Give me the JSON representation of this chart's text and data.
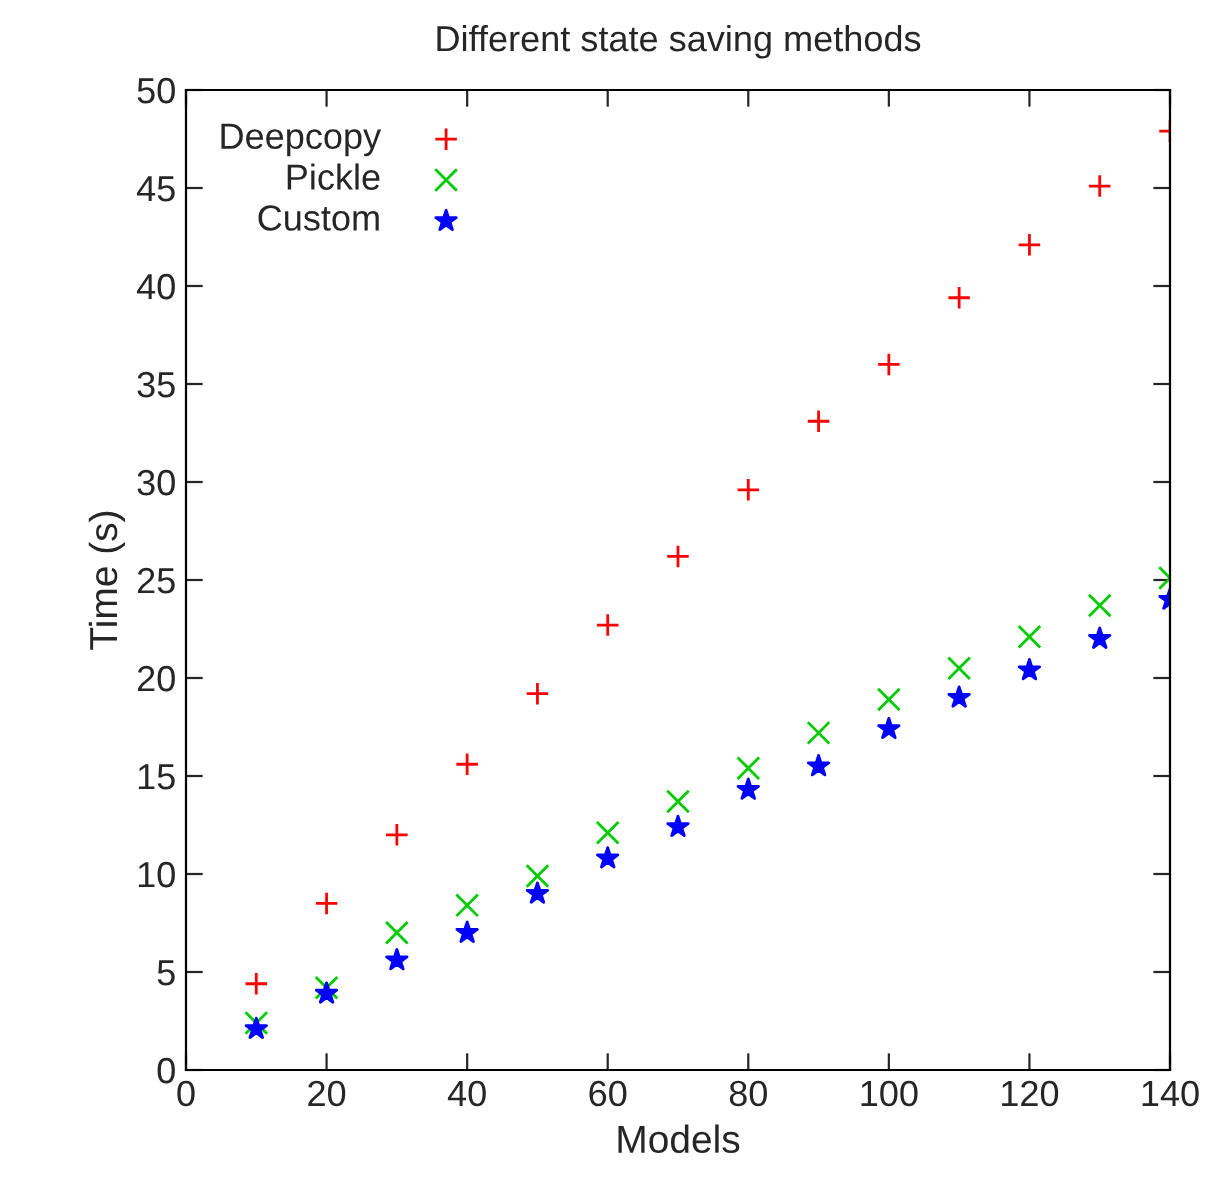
{
  "chart_data": {
    "type": "scatter",
    "title": "Different state saving methods",
    "xlabel": "Models",
    "ylabel": "Time (s)",
    "x": [
      10,
      20,
      30,
      40,
      50,
      60,
      70,
      80,
      90,
      100,
      110,
      120,
      130,
      140
    ],
    "series": [
      {
        "name": "Deepcopy",
        "color": "#ff0000",
        "marker": "plus",
        "values": [
          4.4,
          8.5,
          12.0,
          15.6,
          19.2,
          22.7,
          26.2,
          29.6,
          33.1,
          36.0,
          39.4,
          42.1,
          45.1,
          47.9
        ]
      },
      {
        "name": "Pickle",
        "color": "#00cc00",
        "marker": "cross",
        "values": [
          2.4,
          4.2,
          7.0,
          8.4,
          9.9,
          12.1,
          13.7,
          15.4,
          17.2,
          18.9,
          20.5,
          22.1,
          23.7,
          25.1
        ]
      },
      {
        "name": "Custom",
        "color": "#0000ff",
        "marker": "star",
        "values": [
          2.1,
          3.9,
          5.6,
          7.0,
          9.0,
          10.8,
          12.4,
          14.3,
          15.5,
          17.4,
          19.0,
          20.4,
          22.0,
          24.0
        ]
      }
    ],
    "xlim": [
      0,
      140
    ],
    "ylim": [
      0,
      50
    ],
    "xticks": [
      0,
      20,
      40,
      60,
      80,
      100,
      120,
      140
    ],
    "yticks": [
      0,
      5,
      10,
      15,
      20,
      25,
      30,
      35,
      40,
      45,
      50
    ],
    "grid": false,
    "legend": "top left"
  }
}
